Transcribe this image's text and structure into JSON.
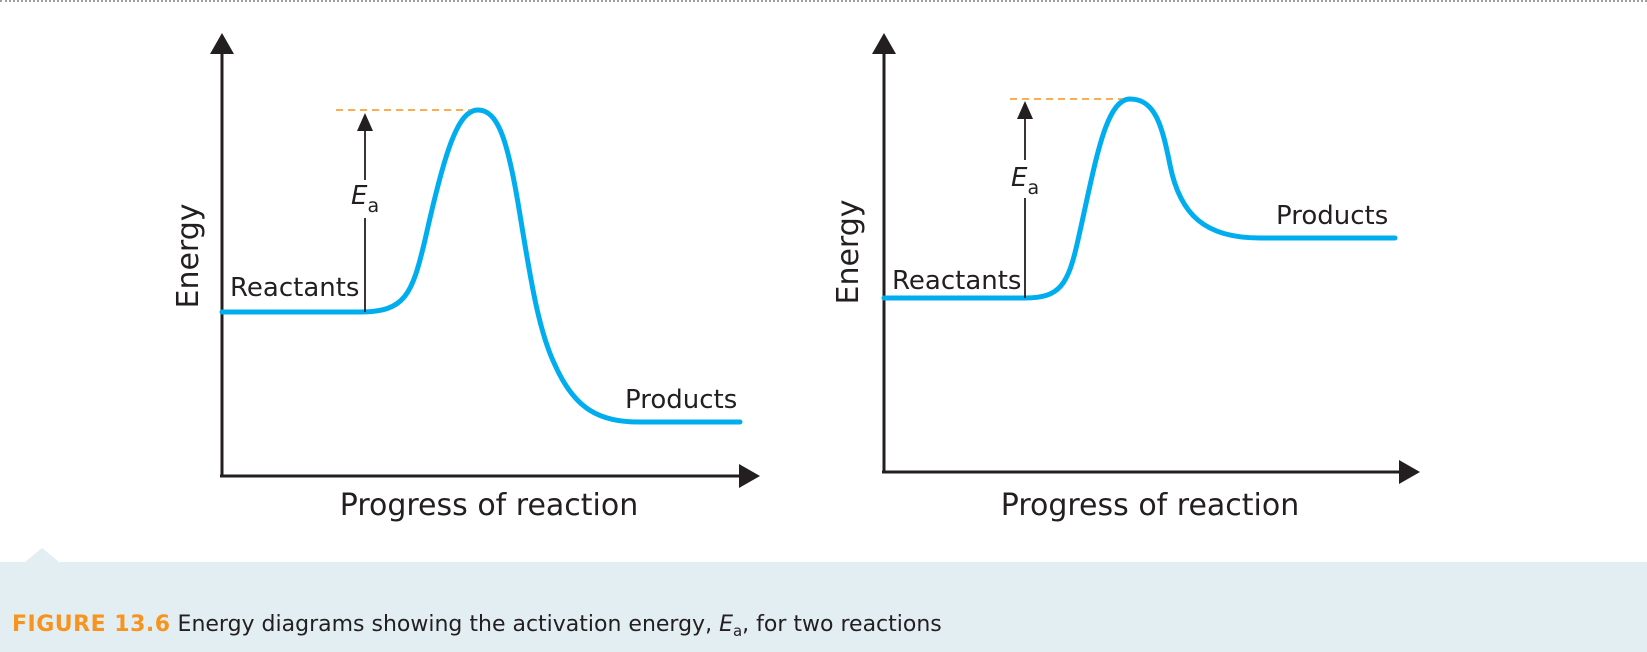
{
  "colors": {
    "curve": "#00aeef",
    "axis": "#231f20",
    "dashed_line": "#f7941d",
    "figure_number": "#f7941d",
    "caption_background": "#e3eef3"
  },
  "diagrams": [
    {
      "y_axis_label": "Energy",
      "x_axis_label": "Progress of reaction",
      "reactants_label": "Reactants",
      "products_label": "Products",
      "ea_symbol": "E",
      "ea_subscript": "a"
    },
    {
      "y_axis_label": "Energy",
      "x_axis_label": "Progress of reaction",
      "reactants_label": "Reactants",
      "products_label": "Products",
      "ea_symbol": "E",
      "ea_subscript": "a"
    }
  ],
  "caption": {
    "figure_number": "FIGURE 13.6",
    "text_before": "Energy diagrams showing the activation energy, ",
    "symbol": "E",
    "subscript": "a",
    "text_after": ", for two reactions"
  }
}
